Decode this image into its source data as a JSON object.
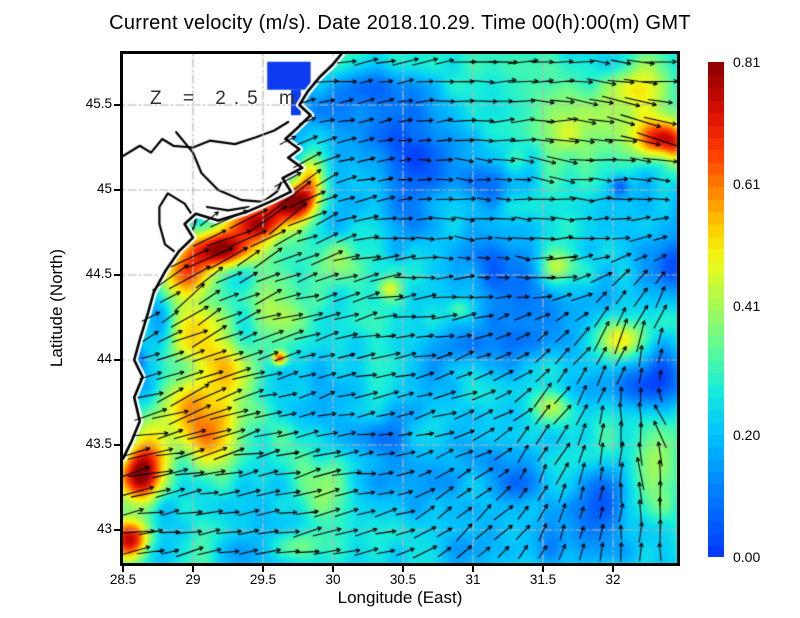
{
  "title": "Current velocity (m/s). Date 2018.10.29. Time 00(h):00(m) GMT",
  "axes": {
    "xlabel": "Longitude (East)",
    "ylabel": "Latitude (North)",
    "xticks": [
      28.5,
      29,
      29.5,
      30,
      30.5,
      31,
      31.5,
      32
    ],
    "yticks": [
      45.5,
      45,
      44.5,
      44,
      43.5,
      43
    ]
  },
  "colorbar": {
    "vmin": 0,
    "vmax": 0.81,
    "ticks": [
      {
        "label": "0.81",
        "value": 0.81
      },
      {
        "label": "0.61",
        "value": 0.61
      },
      {
        "label": "0.41",
        "value": 0.41
      },
      {
        "label": "0.20",
        "value": 0.2
      },
      {
        "label": "0.00",
        "value": 0.0
      }
    ]
  },
  "colors": {
    "frame": "#000000",
    "grid": "#b5b5b5",
    "land": "#ffffff",
    "coast": "#000000",
    "arrow": "#000000",
    "annotation": "#2f2f2f",
    "estuary": "#0d3bf0"
  },
  "chart_data": {
    "type": "heatmap",
    "subtype": "vector_field_map",
    "variable": "current velocity",
    "units": "m/s",
    "depth_annotation": "Z = 2.5 m",
    "lon_range": [
      28.5,
      32.457
    ],
    "lat_range": [
      42.806,
      45.8
    ],
    "speed_range": [
      0.0,
      0.81
    ],
    "base_speed": 0.235,
    "noise": {
      "amp1": 0.08,
      "freq1": 3.1,
      "amp2": 0.045,
      "freq2": 7.3
    },
    "colormap": {
      "stops": [
        [
          0.0,
          "#0336ff"
        ],
        [
          0.12,
          "#0076ff"
        ],
        [
          0.25,
          "#00c3ff"
        ],
        [
          0.34,
          "#18eeda"
        ],
        [
          0.43,
          "#63fb94"
        ],
        [
          0.52,
          "#aef94e"
        ],
        [
          0.6,
          "#eefb18"
        ],
        [
          0.66,
          "#ffd500"
        ],
        [
          0.74,
          "#ff8800"
        ],
        [
          0.82,
          "#ff3b00"
        ],
        [
          0.9,
          "#dc0f00"
        ],
        [
          1.0,
          "#8b0000"
        ]
      ]
    },
    "speed_features": [
      [
        29.7,
        44.93,
        0.2,
        0.11,
        0.5
      ],
      [
        29.45,
        44.8,
        0.22,
        0.1,
        0.45
      ],
      [
        29.18,
        44.65,
        0.28,
        0.11,
        0.55
      ],
      [
        28.95,
        44.5,
        0.2,
        0.13,
        0.35
      ],
      [
        29.82,
        45.08,
        0.1,
        0.15,
        0.32
      ],
      [
        29.0,
        44.15,
        0.3,
        0.25,
        0.25
      ],
      [
        29.25,
        43.95,
        0.22,
        0.18,
        0.22
      ],
      [
        29.2,
        43.55,
        0.28,
        0.22,
        0.32
      ],
      [
        28.95,
        43.75,
        0.18,
        0.15,
        0.25
      ],
      [
        28.62,
        43.32,
        0.16,
        0.16,
        0.55
      ],
      [
        28.56,
        42.94,
        0.14,
        0.12,
        0.5
      ],
      [
        28.7,
        43.55,
        0.15,
        0.2,
        0.25
      ],
      [
        29.62,
        44.01,
        0.05,
        0.04,
        0.4
      ],
      [
        29.55,
        44.35,
        0.25,
        0.18,
        0.15
      ],
      [
        30.05,
        44.62,
        0.18,
        0.12,
        0.12
      ],
      [
        29.9,
        43.3,
        0.2,
        0.2,
        0.12
      ],
      [
        29.75,
        42.9,
        0.2,
        0.1,
        0.18
      ],
      [
        31.9,
        45.4,
        0.55,
        0.28,
        0.2
      ],
      [
        32.32,
        45.3,
        0.16,
        0.11,
        0.4
      ],
      [
        32.46,
        45.25,
        0.1,
        0.14,
        0.28
      ],
      [
        32.2,
        45.6,
        0.2,
        0.12,
        0.15
      ],
      [
        32.05,
        44.12,
        0.18,
        0.13,
        0.3
      ],
      [
        31.62,
        44.55,
        0.13,
        0.1,
        0.18
      ],
      [
        31.3,
        45.18,
        0.1,
        0.08,
        0.15
      ],
      [
        31.55,
        43.72,
        0.13,
        0.1,
        0.22
      ],
      [
        32.35,
        43.4,
        0.18,
        0.3,
        0.15
      ],
      [
        30.4,
        44.42,
        0.08,
        0.06,
        0.18
      ],
      [
        30.9,
        44.3,
        0.08,
        0.06,
        0.12
      ],
      [
        30.45,
        45.3,
        0.4,
        0.32,
        -0.15
      ],
      [
        30.55,
        44.85,
        0.22,
        0.18,
        -0.13
      ],
      [
        30.3,
        45.62,
        0.25,
        0.12,
        -0.1
      ],
      [
        31.45,
        44.32,
        0.4,
        0.28,
        -0.14
      ],
      [
        30.95,
        44.05,
        0.28,
        0.18,
        -0.12
      ],
      [
        31.05,
        44.55,
        0.22,
        0.16,
        -0.1
      ],
      [
        30.7,
        43.3,
        0.45,
        0.3,
        -0.14
      ],
      [
        30.35,
        43.55,
        0.25,
        0.2,
        -0.12
      ],
      [
        31.85,
        43.15,
        0.3,
        0.22,
        -0.13
      ],
      [
        32.3,
        43.9,
        0.22,
        0.18,
        -0.14
      ],
      [
        31.15,
        45.02,
        0.18,
        0.12,
        -0.1
      ],
      [
        32.05,
        45.02,
        0.07,
        0.06,
        -0.18
      ],
      [
        28.78,
        44.22,
        0.09,
        0.16,
        -0.2
      ],
      [
        28.6,
        44.0,
        0.06,
        0.08,
        -0.12
      ],
      [
        32.42,
        44.55,
        0.1,
        0.12,
        -0.12
      ],
      [
        31.35,
        43.28,
        0.2,
        0.18,
        -0.1
      ]
    ],
    "flow_directions": [
      [
        29.95,
        45.62,
        5
      ],
      [
        30.6,
        45.55,
        8
      ],
      [
        31.3,
        45.5,
        2
      ],
      [
        32.0,
        45.45,
        -8
      ],
      [
        32.35,
        45.25,
        -14
      ],
      [
        30.2,
        45.25,
        12
      ],
      [
        30.9,
        45.1,
        -8
      ],
      [
        31.6,
        45.05,
        -10
      ],
      [
        32.3,
        44.9,
        0
      ],
      [
        29.85,
        45.05,
        38
      ],
      [
        29.55,
        44.85,
        35
      ],
      [
        29.2,
        44.68,
        28
      ],
      [
        28.85,
        44.4,
        38
      ],
      [
        28.9,
        43.95,
        22
      ],
      [
        28.65,
        43.45,
        12
      ],
      [
        28.6,
        43.0,
        8
      ],
      [
        29.4,
        43.25,
        10
      ],
      [
        29.8,
        43.75,
        18
      ],
      [
        30.05,
        44.3,
        15
      ],
      [
        30.5,
        44.5,
        5
      ],
      [
        30.45,
        44.05,
        8
      ],
      [
        30.3,
        43.45,
        6
      ],
      [
        30.05,
        42.9,
        10
      ],
      [
        30.95,
        43.6,
        18
      ],
      [
        31.05,
        43.05,
        45
      ],
      [
        31.55,
        43.35,
        65
      ],
      [
        31.95,
        43.05,
        85
      ],
      [
        32.2,
        43.55,
        92
      ],
      [
        32.42,
        43.25,
        100
      ],
      [
        31.65,
        43.95,
        55
      ],
      [
        32.1,
        44.3,
        70
      ],
      [
        32.42,
        44.05,
        85
      ],
      [
        32.45,
        43.65,
        130
      ],
      [
        31.35,
        44.6,
        -12
      ],
      [
        31.9,
        44.6,
        5
      ],
      [
        30.9,
        44.8,
        -10
      ],
      [
        30.45,
        44.78,
        2
      ],
      [
        31.2,
        44.15,
        20
      ],
      [
        29.6,
        45.3,
        25
      ],
      [
        30.1,
        44.85,
        20
      ]
    ],
    "arrow_grid": {
      "cols": 28,
      "rows": 26,
      "x0": 8,
      "y0": 8,
      "dx": 19.6,
      "dy": 19.6,
      "len_base": 9,
      "len_scale": 52,
      "len_max": 52
    },
    "coastline": [
      [
        30.06,
        45.8
      ],
      [
        30.0,
        45.74
      ],
      [
        29.9,
        45.66
      ],
      [
        29.82,
        45.58
      ],
      [
        29.76,
        45.5
      ],
      [
        29.84,
        45.44
      ],
      [
        29.74,
        45.36
      ],
      [
        29.66,
        45.3
      ],
      [
        29.76,
        45.24
      ],
      [
        29.68,
        45.19
      ],
      [
        29.78,
        45.13
      ],
      [
        29.64,
        45.07
      ],
      [
        29.7,
        44.99
      ],
      [
        29.55,
        44.93
      ],
      [
        29.38,
        44.87
      ],
      [
        29.18,
        44.82
      ],
      [
        29.02,
        44.86
      ],
      [
        28.94,
        44.8
      ],
      [
        29.0,
        44.72
      ],
      [
        28.9,
        44.64
      ],
      [
        28.8,
        44.52
      ],
      [
        28.72,
        44.4
      ],
      [
        28.68,
        44.28
      ],
      [
        28.62,
        44.12
      ],
      [
        28.58,
        44.0
      ],
      [
        28.64,
        43.9
      ],
      [
        28.58,
        43.78
      ],
      [
        28.62,
        43.64
      ],
      [
        28.56,
        43.52
      ],
      [
        28.5,
        43.42
      ]
    ],
    "land_lines": [
      [
        [
          28.5,
          45.2
        ],
        [
          28.62,
          45.26
        ],
        [
          28.7,
          45.22
        ],
        [
          28.78,
          45.3
        ],
        [
          28.86,
          45.26
        ],
        [
          29.0,
          45.25
        ],
        [
          29.12,
          45.29
        ],
        [
          29.3,
          45.27
        ],
        [
          29.45,
          45.31
        ],
        [
          29.58,
          45.35
        ],
        [
          29.68,
          45.4
        ]
      ],
      [
        [
          28.88,
          45.34
        ],
        [
          29.0,
          45.22
        ],
        [
          29.06,
          45.1
        ],
        [
          29.18,
          45.0
        ],
        [
          29.35,
          44.94
        ],
        [
          29.5,
          44.93
        ],
        [
          29.6,
          44.99
        ],
        [
          29.65,
          45.08
        ]
      ],
      [
        [
          29.1,
          44.9
        ],
        [
          29.25,
          44.88
        ],
        [
          29.4,
          44.9
        ]
      ]
    ],
    "lagoons": [
      [
        [
          28.82,
          44.98
        ],
        [
          28.94,
          44.92
        ],
        [
          29.02,
          44.82
        ],
        [
          28.97,
          44.7
        ],
        [
          28.88,
          44.63
        ],
        [
          28.8,
          44.68
        ],
        [
          28.76,
          44.8
        ],
        [
          28.76,
          44.9
        ]
      ]
    ],
    "water_bodies": [
      [
        [
          29.53,
          45.59
        ],
        [
          29.84,
          45.59
        ],
        [
          29.84,
          45.755
        ],
        [
          29.53,
          45.755
        ]
      ],
      [
        [
          29.7,
          45.44
        ],
        [
          29.77,
          45.44
        ],
        [
          29.77,
          45.59
        ],
        [
          29.7,
          45.59
        ]
      ]
    ]
  }
}
